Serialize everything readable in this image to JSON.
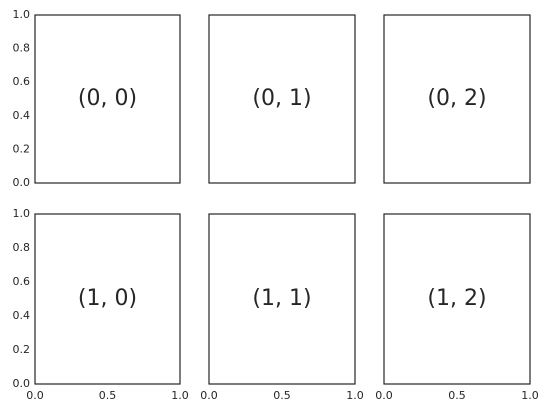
{
  "chart_data": [
    {
      "type": "text",
      "annotation": "(0, 0)",
      "xlim": [
        0,
        1
      ],
      "ylim": [
        0,
        1
      ],
      "yticks": [
        {
          "value": 0,
          "label": "0.0"
        },
        0.2,
        0.4,
        0.6,
        0.8,
        {
          "value": 1,
          "label": "1.0"
        }
      ]
    },
    {
      "type": "text",
      "annotation": "(0, 1)",
      "xlim": [
        0,
        1
      ],
      "ylim": [
        0,
        1
      ]
    },
    {
      "type": "text",
      "annotation": "(0, 2)",
      "xlim": [
        0,
        1
      ],
      "ylim": [
        0,
        1
      ]
    },
    {
      "type": "text",
      "annotation": "(1, 0)",
      "xlim": [
        0,
        1
      ],
      "ylim": [
        0,
        1
      ],
      "xticks": [
        {
          "value": 0,
          "label": "0.0"
        },
        0.5,
        {
          "value": 1,
          "label": "1.0"
        }
      ],
      "yticks": [
        {
          "value": 0,
          "label": "0.0"
        },
        0.2,
        0.4,
        0.6,
        0.8,
        {
          "value": 1,
          "label": "1.0"
        }
      ]
    },
    {
      "type": "text",
      "annotation": "(1, 1)",
      "xlim": [
        0,
        1
      ],
      "ylim": [
        0,
        1
      ],
      "xticks": [
        {
          "value": 0,
          "label": "0.0"
        },
        0.5,
        {
          "value": 1,
          "label": "1.0"
        }
      ]
    },
    {
      "type": "text",
      "annotation": "(1, 2)",
      "xlim": [
        0,
        1
      ],
      "ylim": [
        0,
        1
      ],
      "xticks": [
        {
          "value": 0,
          "label": "0.0"
        },
        0.5,
        {
          "value": 1,
          "label": "1.0"
        }
      ]
    }
  ]
}
